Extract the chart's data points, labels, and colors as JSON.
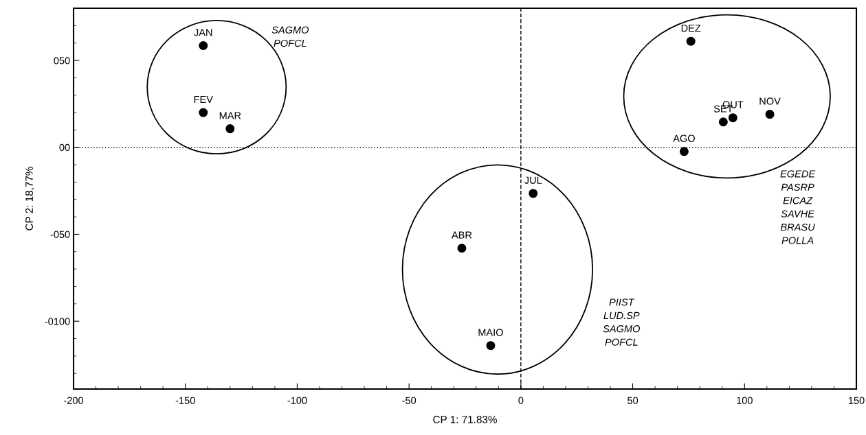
{
  "chart_data": {
    "type": "scatter",
    "xlabel": "CP 1: 71.83%",
    "ylabel": "CP 2: 18,77%",
    "x": [
      -142,
      -142,
      -130,
      -26.4,
      -13.5,
      5.5,
      73,
      90.5,
      94.8,
      111.3,
      76
    ],
    "series": [
      {
        "color": "#000000",
        "values": [
          58.5,
          20,
          10.7,
          -58,
          -114,
          -26.5,
          -2.4,
          14.6,
          17,
          19,
          61
        ]
      }
    ],
    "marker": "circle",
    "xlim": [
      -200,
      150
    ],
    "ylim": [
      -139,
      80
    ],
    "xticks": [
      -200,
      -150,
      -100,
      -50,
      0,
      50,
      100,
      150
    ],
    "yticks": [
      {
        "value": 50,
        "label": "050"
      },
      {
        "value": 0,
        "label": "00"
      },
      {
        "value": -50,
        "label": "-050"
      },
      {
        "value": -100,
        "label": "-0100"
      }
    ],
    "grid": false,
    "legend": false,
    "ref_lines": [
      {
        "axis": "x",
        "value": 0,
        "line_style": "dashed"
      },
      {
        "axis": "y",
        "value": 0,
        "line_style": "dotted"
      }
    ],
    "annotations": [
      {
        "text": "JAN",
        "x": -142,
        "y": 58.5
      },
      {
        "text": "FEV",
        "x": -142,
        "y": 20
      },
      {
        "text": "MAR",
        "x": -130,
        "y": 10.7
      },
      {
        "text": "ABR",
        "x": -26.4,
        "y": -58
      },
      {
        "text": "MAIO",
        "x": -13.5,
        "y": -114
      },
      {
        "text": "JUL",
        "x": 5.5,
        "y": -26.5
      },
      {
        "text": "AGO",
        "x": 73,
        "y": -2.4
      },
      {
        "text": "SET",
        "x": 90.5,
        "y": 14.6
      },
      {
        "text": "OUT",
        "x": 94.8,
        "y": 17
      },
      {
        "text": "NOV",
        "x": 111.3,
        "y": 19
      },
      {
        "text": "DEZ",
        "x": 76,
        "y": 61
      },
      "SAGMO\nPOFCL",
      "EGEDE\nPASRP\nEICAZ\nSAVHE\nBRASU\nPOLLA",
      "PIIST\nLUD.SP\nSAGMO\nPOFCL"
    ]
  }
}
